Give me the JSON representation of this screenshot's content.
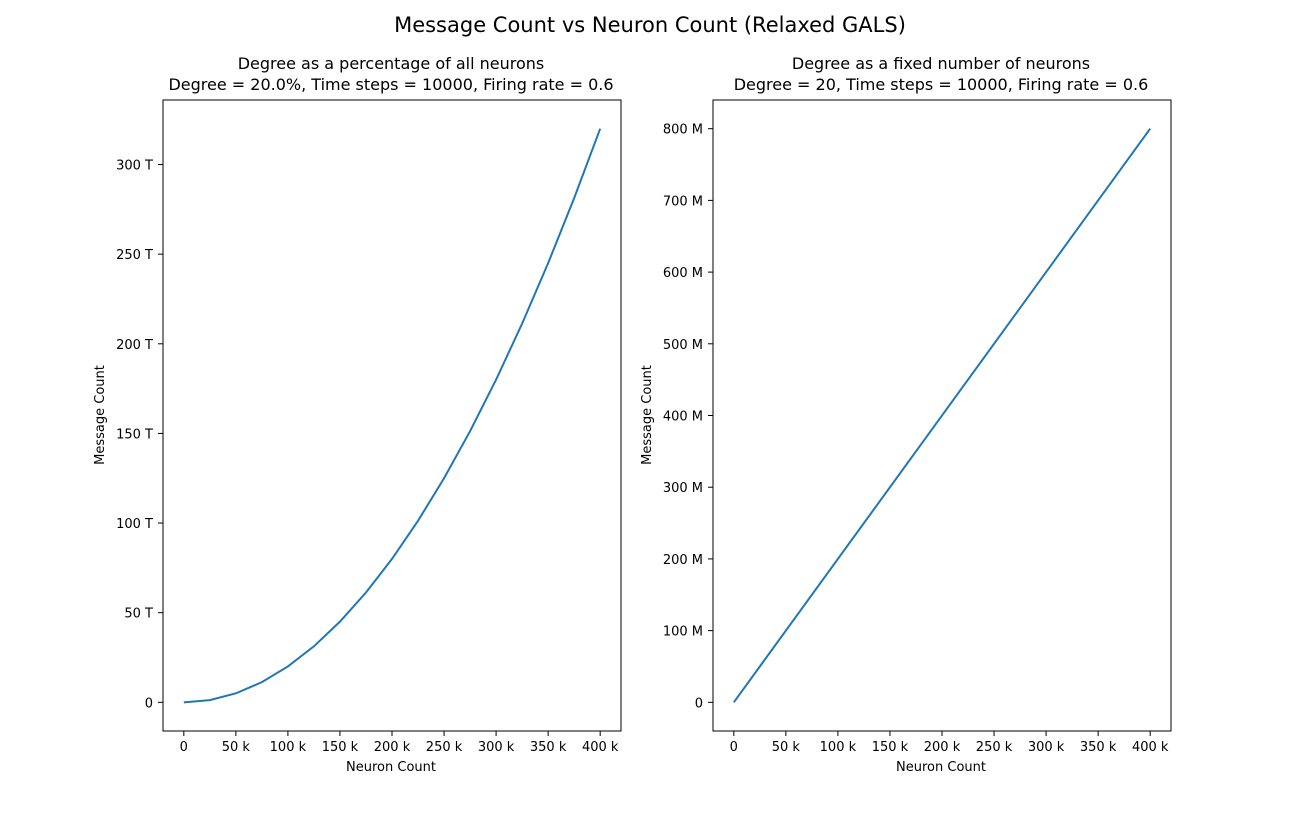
{
  "figure": {
    "suptitle": "Message Count vs Neuron Count (Relaxed GALS)",
    "line_color": "#1f77b4"
  },
  "chart_data": [
    {
      "type": "line",
      "title": "Degree as a percentage of all neurons",
      "subtitle": "Degree = 20.0%, Time steps = 10000, Firing rate = 0.6",
      "xlabel": "Neuron Count",
      "ylabel": "Message Count",
      "xlim": [
        -20000,
        420000
      ],
      "ylim": [
        -16000000000000,
        336000000000000
      ],
      "xticks": [
        0,
        50000,
        100000,
        150000,
        200000,
        250000,
        300000,
        350000,
        400000
      ],
      "xtick_labels": [
        "0",
        "50 k",
        "100 k",
        "150 k",
        "200 k",
        "250 k",
        "300 k",
        "350 k",
        "400 k"
      ],
      "yticks": [
        0,
        50000000000000,
        100000000000000,
        150000000000000,
        200000000000000,
        250000000000000,
        300000000000000
      ],
      "ytick_labels": [
        "0",
        "50 T",
        "100 T",
        "150 T",
        "200 T",
        "250 T",
        "300 T"
      ],
      "grid": false,
      "series": [
        {
          "x": [
            0,
            25000,
            50000,
            75000,
            100000,
            125000,
            150000,
            175000,
            200000,
            225000,
            250000,
            275000,
            300000,
            325000,
            350000,
            375000,
            400000
          ],
          "y": [
            0,
            1250000000000,
            5000000000000,
            11250000000000,
            20000000000000,
            31250000000000,
            45000000000000,
            61250000000000,
            80000000000000,
            101250000000000,
            125000000000000,
            151250000000000,
            180000000000000,
            211250000000000,
            245000000000000,
            281250000000000,
            320000000000000
          ]
        }
      ]
    },
    {
      "type": "line",
      "title": "Degree as a fixed number of neurons",
      "subtitle": "Degree = 20, Time steps = 10000, Firing rate = 0.6",
      "xlabel": "Neuron Count",
      "ylabel": "Message Count",
      "xlim": [
        -20000,
        420000
      ],
      "ylim": [
        -40000000,
        840000000
      ],
      "xticks": [
        0,
        50000,
        100000,
        150000,
        200000,
        250000,
        300000,
        350000,
        400000
      ],
      "xtick_labels": [
        "0",
        "50 k",
        "100 k",
        "150 k",
        "200 k",
        "250 k",
        "300 k",
        "350 k",
        "400 k"
      ],
      "yticks": [
        0,
        100000000,
        200000000,
        300000000,
        400000000,
        500000000,
        600000000,
        700000000,
        800000000
      ],
      "ytick_labels": [
        "0",
        "100 M",
        "200 M",
        "300 M",
        "400 M",
        "500 M",
        "600 M",
        "700 M",
        "800 M"
      ],
      "grid": false,
      "series": [
        {
          "x": [
            0,
            400000
          ],
          "y": [
            0,
            800000000
          ]
        }
      ]
    }
  ]
}
